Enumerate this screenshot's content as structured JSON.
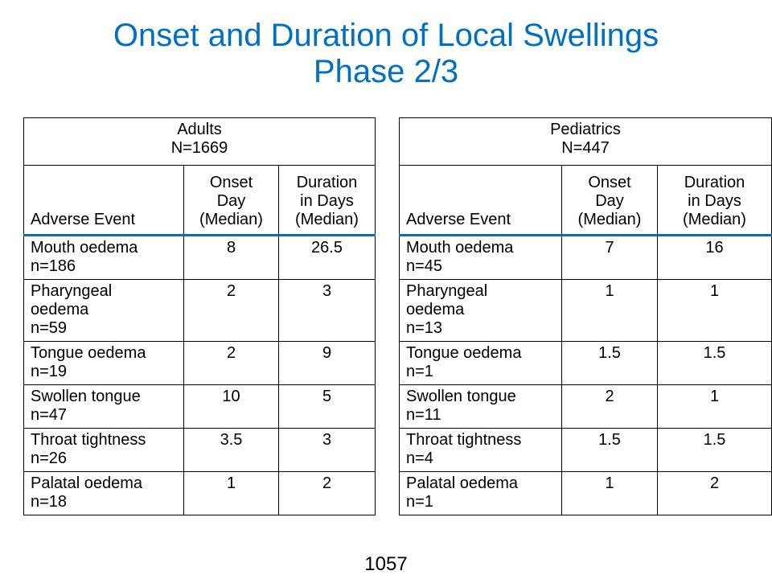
{
  "title": {
    "line1": "Onset and Duration of Local Swellings",
    "line2": "Phase 2/3"
  },
  "columns": {
    "event": "Adverse Event",
    "onset": [
      "Onset",
      "Day",
      "(Median)"
    ],
    "duration": [
      "Duration",
      "in Days",
      "(Median)"
    ]
  },
  "adults": {
    "group": "Adults",
    "n": "N=1669",
    "rows": [
      {
        "event": [
          "Mouth oedema",
          "n=186"
        ],
        "onset": "8",
        "duration": "26.5"
      },
      {
        "event": [
          "Pharyngeal",
          "oedema",
          "n=59"
        ],
        "onset": "2",
        "duration": "3"
      },
      {
        "event": [
          "Tongue oedema",
          "n=19"
        ],
        "onset": "2",
        "duration": "9"
      },
      {
        "event": [
          "Swollen tongue",
          "n=47"
        ],
        "onset": "10",
        "duration": "5"
      },
      {
        "event": [
          "Throat tightness",
          "n=26"
        ],
        "onset": "3.5",
        "duration": "3"
      },
      {
        "event": [
          "Palatal oedema",
          "n=18"
        ],
        "onset": "1",
        "duration": "2"
      }
    ]
  },
  "pediatrics": {
    "group": "Pediatrics",
    "n": "N=447",
    "rows": [
      {
        "event": [
          "Mouth oedema",
          "n=45"
        ],
        "onset": "7",
        "duration": "16"
      },
      {
        "event": [
          "Pharyngeal",
          "oedema",
          "n=13"
        ],
        "onset": "1",
        "duration": "1"
      },
      {
        "event": [
          "Tongue oedema",
          "n=1"
        ],
        "onset": "1.5",
        "duration": "1.5"
      },
      {
        "event": [
          "Swollen tongue",
          "n=11"
        ],
        "onset": "2",
        "duration": "1"
      },
      {
        "event": [
          "Throat tightness",
          "n=4"
        ],
        "onset": "1.5",
        "duration": "1.5"
      },
      {
        "event": [
          "Palatal oedema",
          "n=1"
        ],
        "onset": "1",
        "duration": "2"
      }
    ]
  },
  "page_number": "1057"
}
